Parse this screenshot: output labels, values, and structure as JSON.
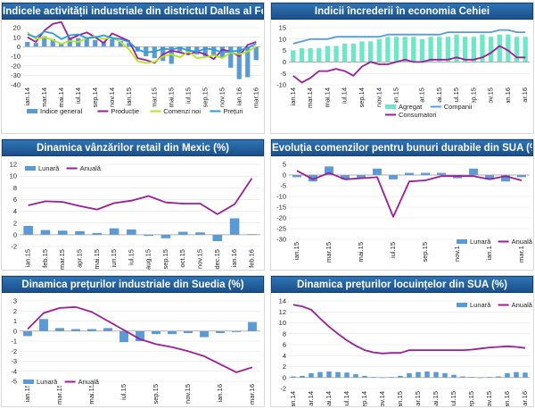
{
  "colors": {
    "blue": "#5b9bd5",
    "purple": "#9b1d9b",
    "green": "#b5e61d",
    "lightblue": "#2e9bdc",
    "teal": "#6ee6c8",
    "grid": "#e2e2e2",
    "axis": "#999999"
  },
  "chart_data": [
    {
      "type": "bar+line",
      "title": "Indicele activității industriale din districtul Dallas al Federal Reserve",
      "ylim": [
        -40,
        20
      ],
      "yticks": [
        20,
        10,
        0,
        -10,
        -20,
        -30,
        -40
      ],
      "n": 28,
      "xticklabels": [
        "ian.14",
        "mar.14",
        "mai.14",
        "iul.14",
        "sep.14",
        "nov.14",
        "ian.15",
        "mar.15",
        "mai.15",
        "iul.15",
        "sep.15",
        "nov.15",
        "ian.16",
        "mar.16"
      ],
      "legend": [
        "Indice general",
        "Producție",
        "Comenzi noi",
        "Prețuri"
      ],
      "bars": {
        "name": "Indice general",
        "values": [
          5,
          4,
          11,
          8,
          4,
          9,
          9,
          10,
          7,
          5,
          8,
          6,
          4,
          -5,
          -10,
          -12,
          -15,
          -18,
          -5,
          -7,
          -8,
          -10,
          -9,
          -11,
          -22,
          -34,
          -32,
          -14
        ]
      },
      "series": [
        {
          "name": "Producție",
          "color": "purple",
          "values": [
            10,
            5,
            17,
            24,
            26,
            8,
            12,
            15,
            10,
            4,
            14,
            10,
            6,
            -12,
            -14,
            -17,
            -8,
            -4,
            -6,
            -8,
            -5,
            -8,
            -13,
            -3,
            -5,
            -10,
            2,
            5
          ]
        },
        {
          "name": "Comenzi noi",
          "color": "green",
          "values": [
            15,
            8,
            10,
            7,
            3,
            6,
            5,
            9,
            11,
            8,
            10,
            5,
            -3,
            -15,
            -17,
            -16,
            -10,
            -8,
            -11,
            -5,
            -12,
            -11,
            -9,
            -12,
            -6,
            -8,
            -5,
            0
          ]
        },
        {
          "name": "Prețuri",
          "color": "lightblue",
          "values": [
            13,
            10,
            16,
            14,
            8,
            12,
            13,
            9,
            10,
            12,
            9,
            8,
            5,
            -3,
            -6,
            -5,
            -2,
            -3,
            -1,
            -4,
            -5,
            -2,
            -3,
            -6,
            -5,
            -4,
            -1,
            3
          ]
        }
      ]
    },
    {
      "type": "bar+line",
      "title": "Indicii încrederii în economia Cehiei",
      "ylim": [
        -10,
        15
      ],
      "yticks": [
        15,
        10,
        5,
        0,
        -5,
        -10
      ],
      "n": 28,
      "xticklabels": [
        "ian.14",
        "mar.14",
        "mai.14",
        "iul.14",
        "sep.14",
        "nov.14",
        "ian.15",
        "mar.15",
        "mai.15",
        "iul.15",
        "sep.15",
        "nov.15",
        "ian.16",
        "mar.16"
      ],
      "legend": [
        "Agregat",
        "Companii",
        "Consumatori"
      ],
      "bars": {
        "name": "Agregat",
        "values": [
          5,
          6,
          6,
          6,
          7,
          7,
          8,
          8,
          9,
          9,
          10,
          11,
          11,
          11,
          11,
          10,
          11,
          11,
          11,
          12,
          11,
          11,
          12,
          11,
          12,
          12,
          11,
          11
        ]
      },
      "series": [
        {
          "name": "Companii",
          "color": "blue",
          "values": [
            8,
            9,
            10,
            10,
            10,
            11,
            11,
            11,
            11,
            11,
            11,
            12,
            12,
            12,
            12,
            12,
            12,
            12,
            13,
            13,
            13,
            13,
            13,
            13,
            14,
            14,
            13,
            13
          ]
        },
        {
          "name": "Consumatori",
          "color": "purple",
          "values": [
            -6,
            -9,
            -7,
            -4,
            -4,
            -3,
            -4,
            -6,
            -2,
            0,
            -1,
            -1,
            0,
            1,
            0,
            0,
            1,
            1,
            1,
            2,
            1,
            1,
            2,
            4,
            7,
            5,
            2,
            2
          ]
        }
      ]
    },
    {
      "type": "bar+line",
      "title": "Dinamica vânzărilor retail din Mexic (%)",
      "ylim": [
        -2,
        12
      ],
      "yticks": [
        12,
        10,
        8,
        6,
        4,
        2,
        0,
        -2
      ],
      "n": 14,
      "xticklabels": [
        "ian.15",
        "feb.15",
        "mar.15",
        "apr.15",
        "mai.15",
        "iun.15",
        "iul.15",
        "aug.15",
        "sep.15",
        "oct.15",
        "nov.15",
        "dec.15",
        "ian.16",
        "feb.16"
      ],
      "legend": [
        "Lunară",
        "Anuală"
      ],
      "bars": {
        "name": "Lunară",
        "values": [
          1.5,
          0.8,
          0.7,
          0.6,
          0.3,
          1.1,
          0.9,
          -0.2,
          -0.6,
          0.5,
          0.4,
          -1.1,
          2.8,
          0.1
        ]
      },
      "series": [
        {
          "name": "Anuală",
          "color": "purple",
          "values": [
            5,
            5.7,
            5.6,
            4.9,
            4.3,
            5.4,
            5.8,
            6.6,
            5.5,
            5.3,
            5.3,
            3.5,
            5.2,
            9.6
          ]
        }
      ]
    },
    {
      "type": "bar+line",
      "title": "Evoluția comenzilor pentru bunuri durabile din SUA (%)",
      "ylim": [
        -30,
        5
      ],
      "yticks": [
        5,
        0,
        -5,
        -10,
        -15,
        -20,
        -25,
        -30
      ],
      "n": 15,
      "xticklabels": [
        "ian.15",
        "mar.15",
        "mai.15",
        "iul.15",
        "sep.15",
        "nov.15",
        "ian.16",
        "mar.16"
      ],
      "legend": [
        "Lunară",
        "Anuală"
      ],
      "bars": {
        "name": "Lunară",
        "values": [
          -1,
          -3,
          4,
          -2,
          -1.5,
          3,
          -2,
          1,
          1,
          1,
          -1.5,
          3,
          -2,
          -3,
          -1
        ]
      },
      "series": [
        {
          "name": "Anuală",
          "color": "purple",
          "values": [
            2,
            -2,
            1,
            -2,
            -1.5,
            -1,
            -19.5,
            -3,
            -2.5,
            -0.5,
            -0.5,
            -0.5,
            -2,
            -0.5,
            -2.5
          ]
        }
      ]
    },
    {
      "type": "bar+line",
      "title": "Dinamica prețurilor industriale din Suedia (%)",
      "ylim": [
        -5,
        3
      ],
      "yticks": [
        3,
        2,
        1,
        0,
        -1,
        -2,
        -3,
        -4,
        -5
      ],
      "n": 15,
      "xticklabels": [
        "ian.15",
        "mar.15",
        "mai.15",
        "iul.15",
        "sep.15",
        "nov.15",
        "ian.16",
        "mar.16"
      ],
      "legend": [
        "Lunară",
        "Anuală"
      ],
      "bars": {
        "name": "Lunară",
        "values": [
          -0.5,
          1.2,
          0.3,
          0.2,
          0.2,
          0.3,
          -1.1,
          -1,
          -0.3,
          -0.3,
          -0.2,
          -0.6,
          -0.2,
          -0.1,
          0.9
        ]
      },
      "series": [
        {
          "name": "Anuală",
          "color": "purple",
          "values": [
            0.2,
            1.8,
            2.3,
            2.4,
            1.9,
            1,
            0.1,
            -0.8,
            -1.3,
            -1.6,
            -2,
            -2.5,
            -3.3,
            -4.1,
            -3.6
          ]
        }
      ]
    },
    {
      "type": "bar+line",
      "title": "Dinamica prețurilor locuințelor din SUA (%)",
      "ylim": [
        -2,
        14
      ],
      "yticks": [
        14,
        12,
        10,
        8,
        6,
        4,
        2,
        0,
        -2
      ],
      "n": 27,
      "xticklabels": [
        "ian.14",
        "mar.14",
        "mai.14",
        "iul.14",
        "sep.14",
        "nov.14",
        "ian.15",
        "mar.15",
        "mai.15",
        "iul.15",
        "sep.15",
        "nov.15",
        "ian.16",
        "mar.16"
      ],
      "legend": [
        "Lunară",
        "Anuală"
      ],
      "bars": {
        "name": "Lunară",
        "values": [
          0.2,
          0.3,
          0.8,
          1,
          1.1,
          1,
          0.9,
          0.6,
          0.3,
          0.1,
          0,
          0.1,
          0.3,
          0.8,
          1,
          1.1,
          1,
          0.8,
          0.5,
          0.2,
          0.1,
          0,
          0.1,
          0.2,
          0.8,
          1,
          0.9
        ]
      },
      "series": [
        {
          "name": "Anuală",
          "color": "purple",
          "values": [
            13.3,
            13,
            12.4,
            10.8,
            9.3,
            8,
            6.8,
            5.8,
            5,
            4.6,
            4.4,
            4.5,
            4.5,
            5,
            5,
            5,
            5,
            5,
            5,
            5,
            5.1,
            5.3,
            5.5,
            5.6,
            5.7,
            5.6,
            5.4
          ]
        }
      ]
    }
  ]
}
